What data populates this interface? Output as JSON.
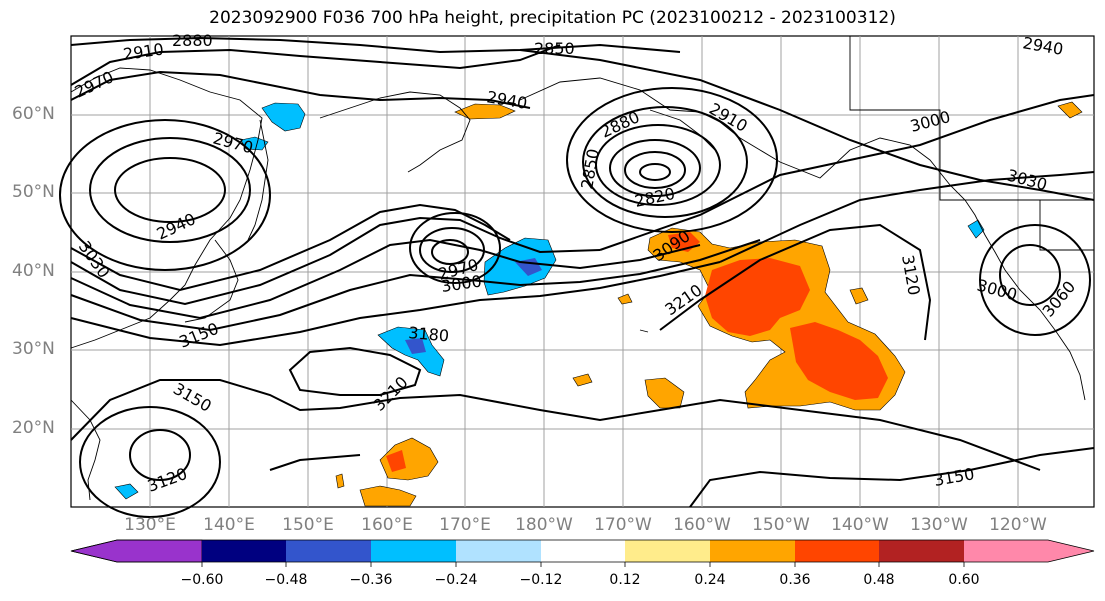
{
  "title": "2023092900 F036 700 hPa height, precipitation PC (2023100212 - 2023100312)",
  "lat_labels": [
    "60°N",
    "50°N",
    "40°N",
    "30°N",
    "20°N"
  ],
  "lon_labels": [
    "130°E",
    "140°E",
    "150°E",
    "160°E",
    "170°E",
    "180°W",
    "170°W",
    "160°W",
    "150°W",
    "140°W",
    "130°W",
    "120°W"
  ],
  "contour_labels": [
    "2880",
    "2910",
    "2970",
    "2850",
    "2940",
    "2940",
    "2970",
    "2880",
    "2910",
    "3000",
    "2850",
    "2820",
    "3030",
    "3090",
    "2940",
    "2970",
    "3000",
    "3030",
    "3150",
    "3180",
    "3120",
    "3210",
    "3000",
    "3060",
    "3150",
    "3120",
    "3210",
    "3150"
  ],
  "colorbar": {
    "tick_labels": [
      "−0.60",
      "−0.48",
      "−0.36",
      "−0.24",
      "−0.12",
      "0.12",
      "0.24",
      "0.36",
      "0.48",
      "0.60"
    ],
    "colors": [
      "#9933cc",
      "#000080",
      "#3355cc",
      "#00bfff",
      "#b0e2ff",
      "#ffffff",
      "#ffec8b",
      "#ffa500",
      "#ff4500",
      "#b22222",
      "#ff88aa"
    ]
  },
  "colors": {
    "negative": "#00bfff",
    "positive_low": "#ffa500",
    "positive_high": "#ff4500",
    "contour": "#000000"
  }
}
